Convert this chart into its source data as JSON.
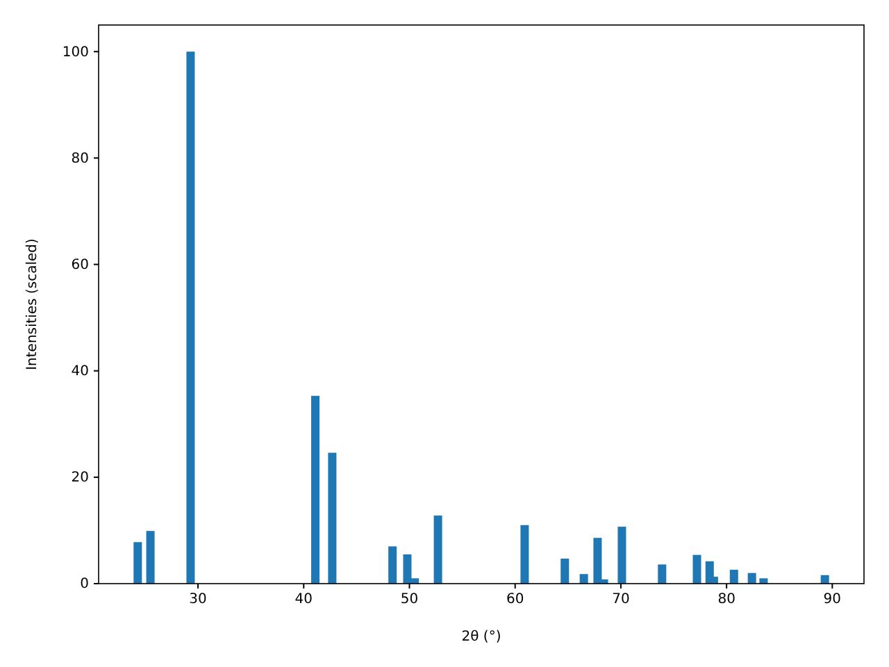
{
  "chart_data": {
    "type": "bar",
    "xlabel": "2θ (°)",
    "ylabel": "Intensities (scaled)",
    "x": [
      24.3,
      25.5,
      29.3,
      41.1,
      42.7,
      48.4,
      49.8,
      50.5,
      52.7,
      60.9,
      64.7,
      66.5,
      67.8,
      68.4,
      70.1,
      73.9,
      77.2,
      78.4,
      78.8,
      80.7,
      82.4,
      83.5,
      89.3
    ],
    "values": [
      7.8,
      9.9,
      100,
      35.3,
      24.6,
      7.0,
      5.5,
      1.0,
      12.8,
      11.0,
      4.7,
      1.8,
      8.6,
      0.8,
      10.7,
      3.6,
      5.4,
      4.2,
      1.3,
      2.6,
      2.0,
      1.0,
      1.6
    ],
    "color": "#1f77b4",
    "xlim": [
      20.6,
      93.0
    ],
    "xticks": [
      30,
      40,
      50,
      60,
      70,
      80,
      90
    ],
    "ylim": [
      0,
      105
    ],
    "yticks": [
      0,
      20,
      40,
      60,
      80,
      100
    ]
  }
}
